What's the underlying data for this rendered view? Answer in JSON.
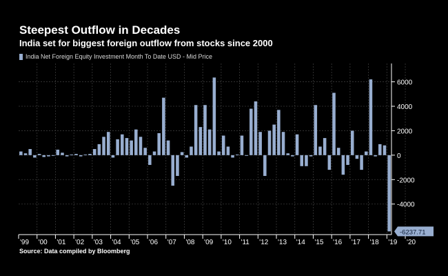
{
  "title": "Steepest Outflow in Decades",
  "subtitle": "India set for biggest foreign outflow from stocks since 2000",
  "legend_label": "India Net Foreign Equity Investment Month To Date USD - Mid Price",
  "source": "Source: Data compiled by Bloomberg",
  "colors": {
    "bar": "#98aed0",
    "background": "#000000",
    "grid": "#3a3a3a",
    "axis": "#ffffff",
    "callout_bg": "#98aed0"
  },
  "chart_data": {
    "type": "bar",
    "title": "Steepest Outflow in Decades",
    "subtitle": "India set for biggest foreign outflow from stocks since 2000",
    "xlabel": "",
    "ylabel": "",
    "ylim": [
      -6500,
      7500
    ],
    "y_ticks": [
      6000,
      4000,
      2000,
      0,
      -2000,
      -4000
    ],
    "y_tick_labels": [
      "6000",
      "4000",
      "2000",
      "0",
      "-2000",
      "-4000"
    ],
    "x_tick_labels": [
      "'99",
      "'00",
      "'01",
      "'02",
      "'03",
      "'04",
      "'05",
      "'06",
      "'07",
      "'08",
      "'09",
      "'10",
      "'11",
      "'12",
      "'13",
      "'14",
      "'15",
      "'16",
      "'17",
      "'18",
      "'19",
      "'20"
    ],
    "last_value_label": "-6237.71",
    "series": [
      {
        "name": "India Net Foreign Equity Investment Month To Date USD - Mid Price",
        "frequency": "quarterly",
        "start": "1999 Q1",
        "values": [
          300,
          150,
          500,
          -200,
          100,
          -150,
          -100,
          -50,
          450,
          200,
          -100,
          50,
          100,
          -100,
          50,
          100,
          500,
          900,
          1500,
          1900,
          -200,
          1300,
          1700,
          1400,
          1200,
          2100,
          1500,
          600,
          -800,
          300,
          1800,
          4700,
          1200,
          -2500,
          -1700,
          250,
          -200,
          700,
          4100,
          2300,
          4100,
          2100,
          6350,
          300,
          1600,
          700,
          -200,
          50,
          1600,
          -50,
          3800,
          4400,
          1900,
          -1700,
          2000,
          2500,
          3700,
          1900,
          150,
          -100,
          1700,
          -900,
          -900,
          -100,
          4100,
          700,
          1400,
          -1200,
          5100,
          600,
          -1600,
          -800,
          2000,
          -300,
          -1200,
          300,
          6200,
          -100,
          900,
          800,
          -6237.71
        ]
      }
    ]
  }
}
